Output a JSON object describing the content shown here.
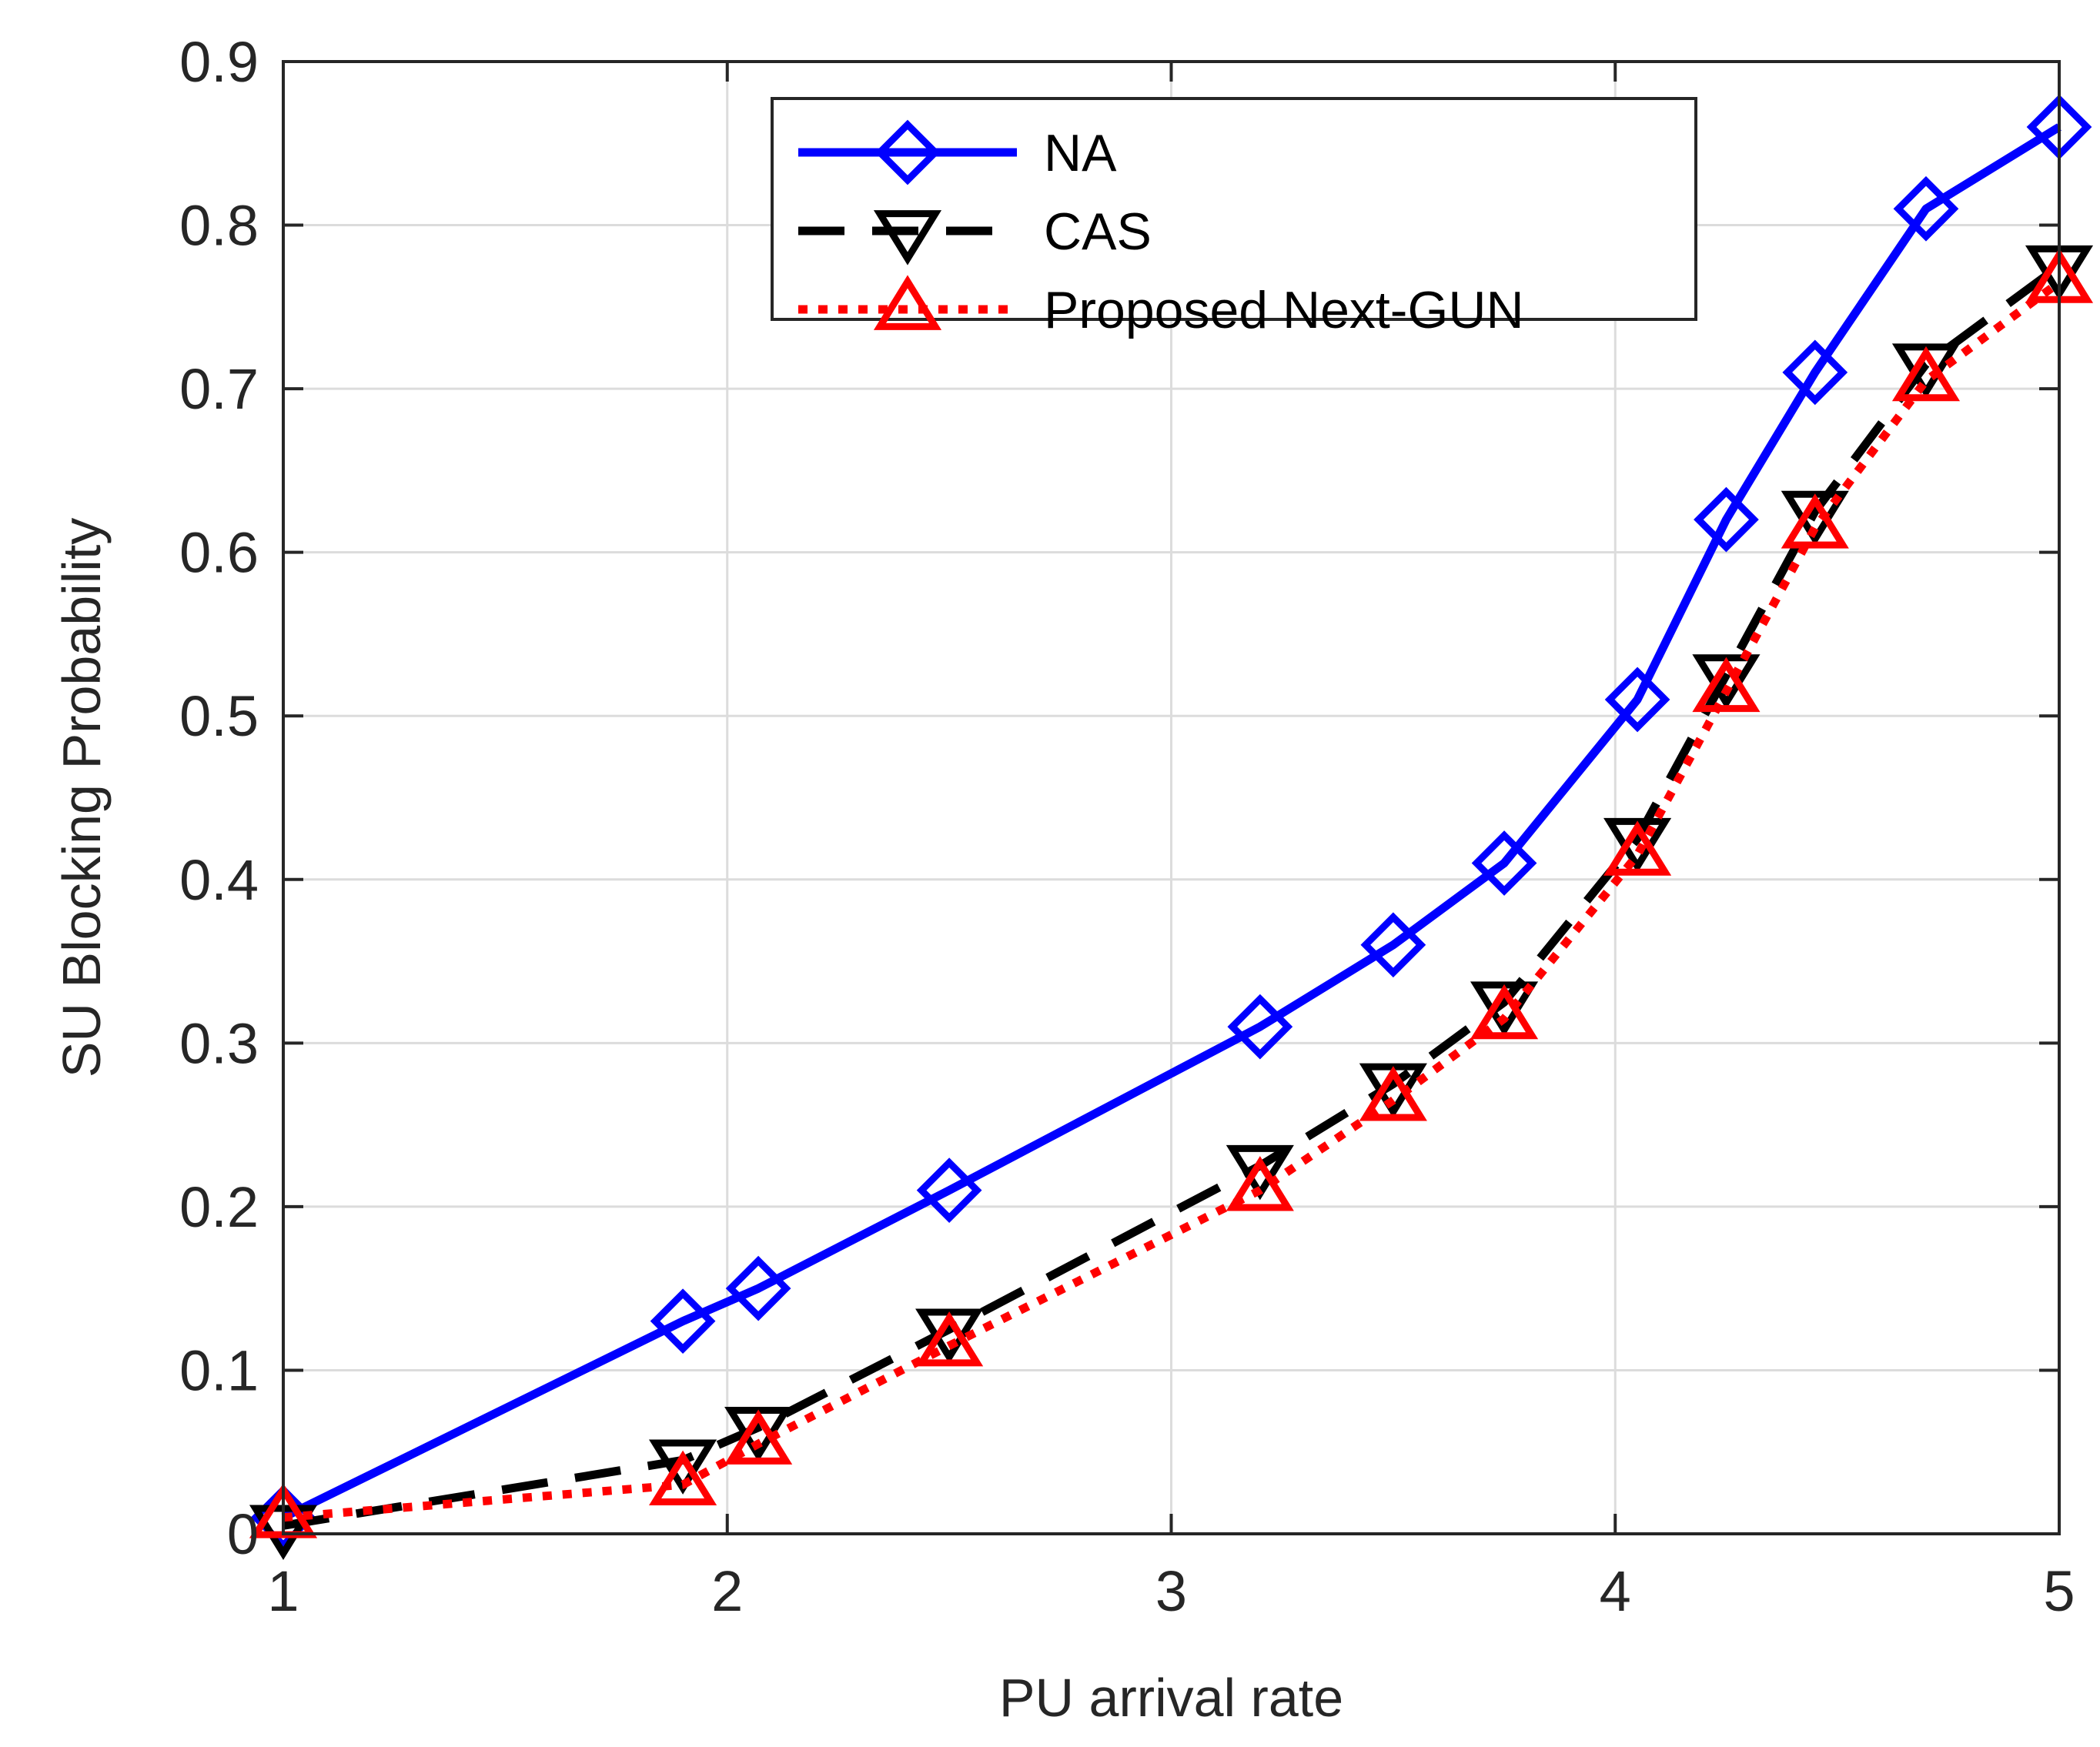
{
  "chart_data": {
    "type": "line",
    "title": "",
    "xlabel": "PU arrival rate",
    "ylabel": "SU Blocking Probability",
    "xlim": [
      1,
      5
    ],
    "ylim": [
      0,
      0.9
    ],
    "xticks": [
      1,
      2,
      3,
      4,
      5
    ],
    "xtick_labels": [
      "1",
      "2",
      "3",
      "4",
      "5"
    ],
    "yticks": [
      0,
      0.1,
      0.2,
      0.3,
      0.4,
      0.5,
      0.6,
      0.7,
      0.8,
      0.9
    ],
    "ytick_labels": [
      "0",
      "0.1",
      "0.2",
      "0.3",
      "0.4",
      "0.5",
      "0.6",
      "0.7",
      "0.8",
      "0.9"
    ],
    "grid": true,
    "legend_position": "top-center",
    "series": [
      {
        "name": "NA",
        "color": "#0000ff",
        "line_style": "solid",
        "marker": "diamond",
        "x": [
          1,
          1.9,
          2.07,
          2.5,
          3.2,
          3.5,
          3.75,
          4.05,
          4.25,
          4.45,
          4.7,
          5
        ],
        "y": [
          0.01,
          0.13,
          0.15,
          0.21,
          0.31,
          0.36,
          0.41,
          0.51,
          0.62,
          0.71,
          0.81,
          0.86
        ]
      },
      {
        "name": "CAS",
        "color": "#000000",
        "line_style": "dashed",
        "marker": "triangle-down",
        "x": [
          1,
          1.9,
          2.07,
          2.5,
          3.2,
          3.5,
          3.75,
          4.05,
          4.25,
          4.45,
          4.7,
          5
        ],
        "y": [
          0.005,
          0.045,
          0.065,
          0.125,
          0.225,
          0.275,
          0.325,
          0.425,
          0.525,
          0.625,
          0.715,
          0.775
        ]
      },
      {
        "name": "Proposed Next-GUN",
        "color": "#ff0000",
        "line_style": "dotted",
        "marker": "triangle-up",
        "x": [
          1,
          1.9,
          2.07,
          2.5,
          3.2,
          3.5,
          3.75,
          4.05,
          4.25,
          4.45,
          4.7,
          5
        ],
        "y": [
          0.01,
          0.03,
          0.055,
          0.115,
          0.21,
          0.265,
          0.315,
          0.415,
          0.515,
          0.615,
          0.705,
          0.765
        ]
      }
    ]
  }
}
